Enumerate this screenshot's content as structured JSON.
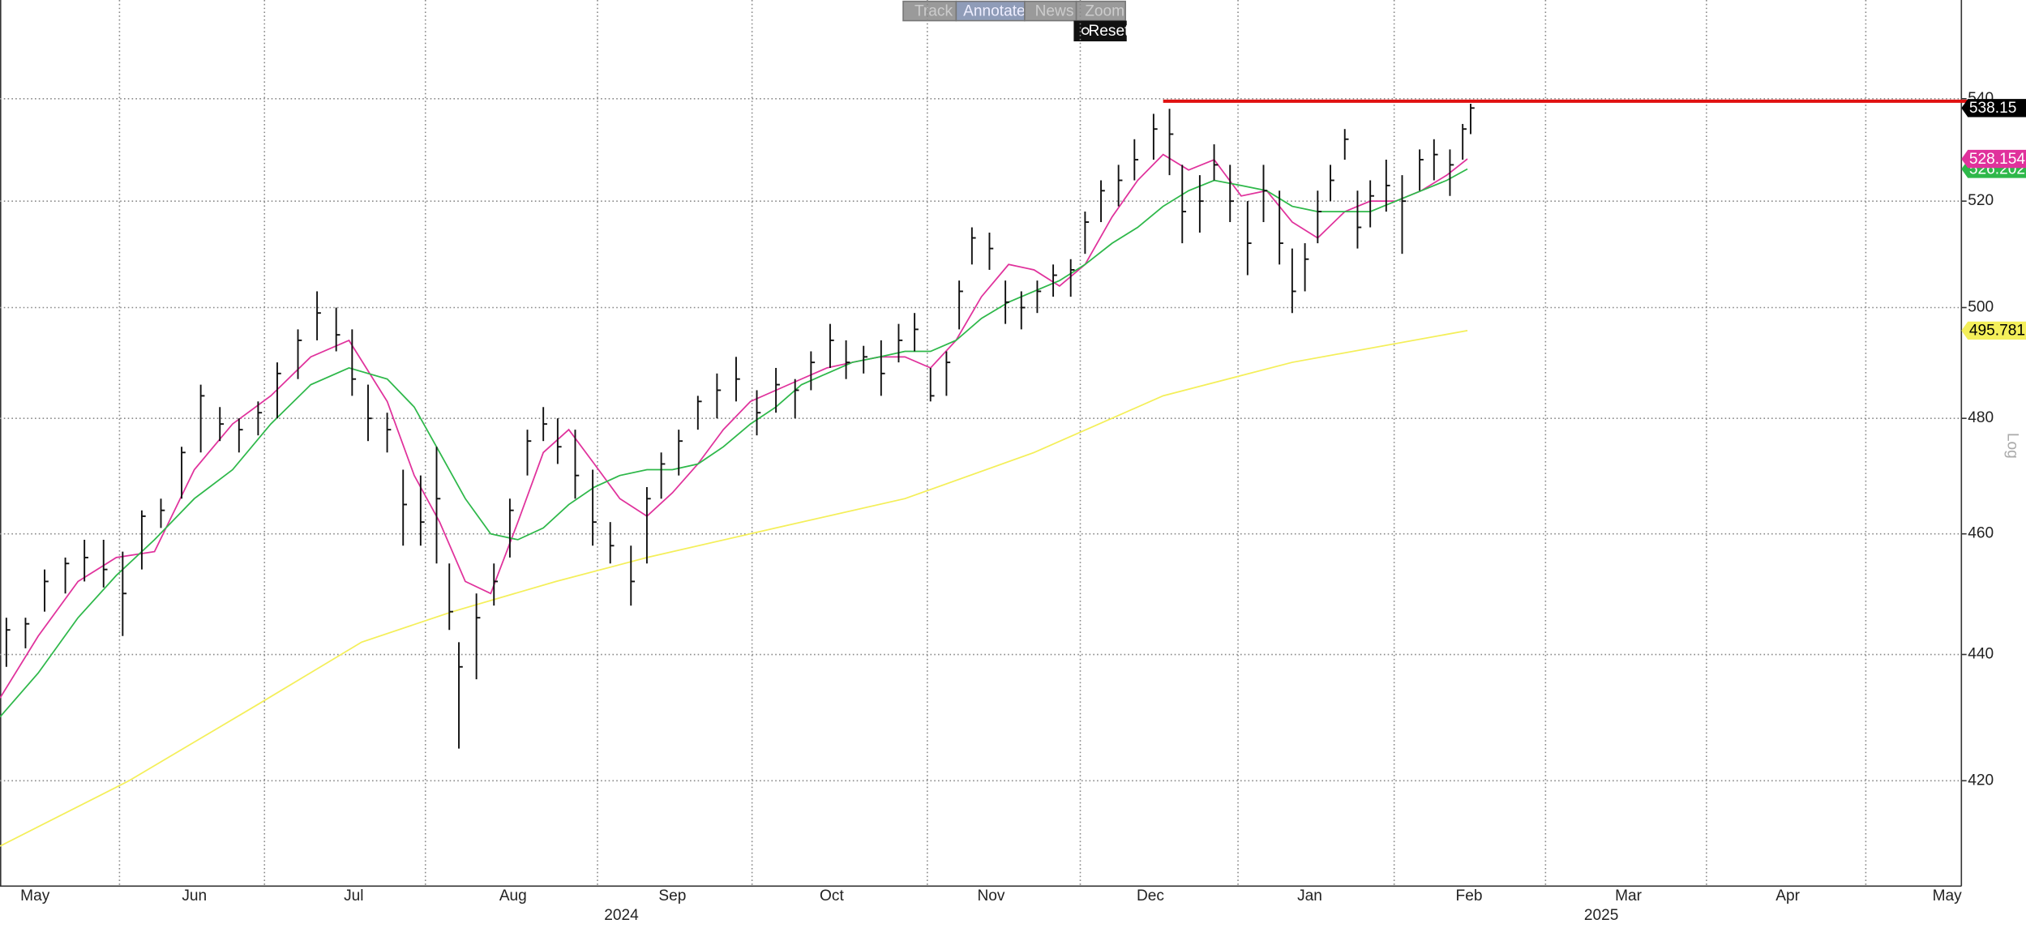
{
  "toolbar": [
    "Track",
    "Annotate",
    "News",
    "Zoom",
    "Reset"
  ],
  "chart_data": {
    "type": "hlc",
    "y_scale": "log",
    "grid": true,
    "y_axis_label": "Log",
    "xlim": [
      -0.22,
      12.09
    ],
    "xticks": [
      {
        "value": 0,
        "label": "May"
      },
      {
        "value": 1,
        "label": "Jun"
      },
      {
        "value": 2,
        "label": "Jul"
      },
      {
        "value": 3,
        "label": "Aug"
      },
      {
        "value": 4,
        "label": "Sep"
      },
      {
        "value": 5,
        "label": "Oct"
      },
      {
        "value": 6,
        "label": "Nov"
      },
      {
        "value": 7,
        "label": "Dec"
      },
      {
        "value": 8,
        "label": "Jan"
      },
      {
        "value": 9,
        "label": "Feb"
      },
      {
        "value": 10,
        "label": "Mar"
      },
      {
        "value": 11,
        "label": "Apr"
      },
      {
        "value": 12,
        "label": "May"
      }
    ],
    "xgrid": [
      0.53,
      1.44,
      2.45,
      3.53,
      4.5,
      5.6,
      6.56,
      7.55,
      8.53,
      9.48,
      10.49,
      11.49
    ],
    "year_labels": [
      {
        "text": "2024",
        "x": 3.68
      },
      {
        "text": "2025",
        "x": 9.83
      }
    ],
    "ylim": [
      404,
      560
    ],
    "yticks": [
      420,
      440,
      460,
      480,
      500,
      520,
      540
    ],
    "bars": {
      "color": "#111111",
      "x": [
        -0.18,
        -0.06,
        0.06,
        0.19,
        0.31,
        0.43,
        0.55,
        0.67,
        0.79,
        0.92,
        1.04,
        1.16,
        1.28,
        1.4,
        1.52,
        1.65,
        1.77,
        1.89,
        1.99,
        2.09,
        2.21,
        2.31,
        2.42,
        2.52,
        2.6,
        2.66,
        2.77,
        2.88,
        2.98,
        3.09,
        3.19,
        3.28,
        3.39,
        3.5,
        3.61,
        3.74,
        3.84,
        3.93,
        4.04,
        4.16,
        4.28,
        4.4,
        4.53,
        4.65,
        4.77,
        4.87,
        4.99,
        5.09,
        5.2,
        5.31,
        5.42,
        5.52,
        5.62,
        5.72,
        5.8,
        5.88,
        5.99,
        6.09,
        6.19,
        6.29,
        6.39,
        6.5,
        6.59,
        6.69,
        6.8,
        6.9,
        7.02,
        7.12,
        7.2,
        7.31,
        7.4,
        7.5,
        7.61,
        7.71,
        7.81,
        7.89,
        7.97,
        8.05,
        8.13,
        8.22,
        8.3,
        8.38,
        8.48,
        8.58,
        8.69,
        8.78,
        8.88,
        8.96,
        9.01
      ],
      "high": [
        446,
        446,
        454,
        456,
        459,
        459,
        457,
        464,
        466,
        475,
        486,
        482,
        480,
        483,
        490,
        496,
        503,
        500,
        496,
        486,
        481,
        471,
        470,
        475,
        455,
        442,
        450,
        455,
        466,
        478,
        482,
        480,
        478,
        471,
        462,
        458,
        468,
        474,
        478,
        484,
        488,
        491,
        485,
        489,
        487,
        492,
        497,
        494,
        493,
        494,
        497,
        499,
        489,
        492,
        505,
        515,
        514,
        505,
        503,
        505,
        508,
        509,
        518,
        524,
        527,
        532,
        537,
        538,
        527,
        525,
        531,
        527,
        520,
        527,
        522,
        511,
        512,
        522,
        527,
        534,
        522,
        524,
        528,
        525,
        530,
        532,
        530,
        535,
        539
      ],
      "low": [
        438,
        441,
        447,
        450,
        452,
        451,
        443,
        454,
        461,
        466,
        474,
        476,
        474,
        477,
        480,
        487,
        494,
        492,
        484,
        476,
        474,
        458,
        458,
        455,
        444,
        425,
        436,
        448,
        456,
        470,
        476,
        472,
        466,
        458,
        455,
        448,
        455,
        466,
        470,
        478,
        480,
        483,
        477,
        481,
        480,
        485,
        489,
        487,
        488,
        484,
        490,
        492,
        483,
        484,
        496,
        508,
        507,
        497,
        496,
        499,
        502,
        502,
        510,
        516,
        519,
        524,
        528,
        525,
        512,
        514,
        524,
        516,
        506,
        516,
        508,
        499,
        503,
        512,
        520,
        528,
        511,
        515,
        518,
        510,
        522,
        524,
        521,
        528,
        533
      ],
      "close": [
        444,
        445,
        452,
        455,
        456,
        454,
        450,
        463,
        464,
        474,
        484,
        479,
        478,
        481,
        488,
        494,
        499,
        495,
        487,
        480,
        478,
        465,
        462,
        466,
        447,
        438,
        446,
        452,
        464,
        476,
        479,
        475,
        470,
        462,
        458,
        452,
        466,
        472,
        476,
        483,
        485,
        487,
        481,
        486,
        485,
        490,
        494,
        490,
        491,
        488,
        494,
        496,
        484,
        490,
        503,
        513,
        511,
        501,
        500,
        503,
        506,
        507,
        516,
        522,
        524,
        528,
        534,
        533,
        518,
        520,
        527,
        520,
        512,
        522,
        512,
        503,
        509,
        518,
        524,
        532,
        515,
        521,
        523,
        520,
        528,
        529,
        527,
        534,
        538.15
      ]
    },
    "series": [
      {
        "color": "#e0329c",
        "x": [
          -0.22,
          0.02,
          0.27,
          0.51,
          0.75,
          1.0,
          1.24,
          1.48,
          1.73,
          1.97,
          2.21,
          2.38,
          2.54,
          2.7,
          2.86,
          3.03,
          3.19,
          3.35,
          3.51,
          3.67,
          3.84,
          4.0,
          4.16,
          4.32,
          4.49,
          4.65,
          4.81,
          4.97,
          5.13,
          5.3,
          5.46,
          5.62,
          5.78,
          5.94,
          6.11,
          6.27,
          6.43,
          6.59,
          6.76,
          6.92,
          7.08,
          7.24,
          7.4,
          7.57,
          7.73,
          7.89,
          8.05,
          8.22,
          8.38,
          8.54,
          8.7,
          8.86,
          8.99
        ],
        "values": [
          433,
          443,
          452,
          456,
          457,
          471,
          479,
          484,
          491,
          494,
          483,
          470,
          462,
          452,
          450,
          462,
          474,
          478,
          472,
          466,
          463,
          467,
          472,
          478,
          483,
          485,
          487,
          489,
          490,
          491,
          491,
          489,
          494,
          502,
          508,
          507,
          504,
          508,
          517,
          524,
          529,
          526,
          528,
          521,
          522,
          516,
          513,
          518,
          520,
          520,
          522,
          525,
          528.154
        ]
      },
      {
        "color": "#2eb84a",
        "x": [
          -0.22,
          0.02,
          0.27,
          0.51,
          0.75,
          1.0,
          1.24,
          1.48,
          1.73,
          1.97,
          2.21,
          2.38,
          2.54,
          2.7,
          2.86,
          3.03,
          3.19,
          3.35,
          3.51,
          3.67,
          3.84,
          4.0,
          4.16,
          4.32,
          4.49,
          4.65,
          4.81,
          4.97,
          5.13,
          5.3,
          5.46,
          5.62,
          5.78,
          5.94,
          6.11,
          6.27,
          6.43,
          6.59,
          6.76,
          6.92,
          7.08,
          7.24,
          7.4,
          7.57,
          7.73,
          7.89,
          8.05,
          8.22,
          8.38,
          8.54,
          8.7,
          8.86,
          8.99
        ],
        "values": [
          430,
          437,
          446,
          453,
          459,
          466,
          471,
          479,
          486,
          489,
          487,
          482,
          474,
          466,
          460,
          459,
          461,
          465,
          468,
          470,
          471,
          471,
          472,
          475,
          479,
          482,
          486,
          488,
          490,
          491,
          492,
          492,
          494,
          498,
          501,
          503,
          505,
          508,
          512,
          515,
          519,
          522,
          524,
          523,
          522,
          519,
          518,
          518,
          518,
          520,
          522,
          524,
          526.202
        ]
      },
      {
        "color": "#f4ef5a",
        "x": [
          -0.22,
          0.59,
          1.4,
          2.05,
          2.62,
          3.27,
          3.84,
          4.65,
          5.46,
          6.27,
          7.08,
          7.89,
          8.99
        ],
        "values": [
          410,
          420,
          432,
          442,
          447,
          452,
          456,
          461,
          466,
          474,
          484,
          490,
          495.781
        ]
      }
    ],
    "hline": {
      "value": 539.5,
      "x_start": 7.08,
      "color": "#e01010"
    }
  }
}
